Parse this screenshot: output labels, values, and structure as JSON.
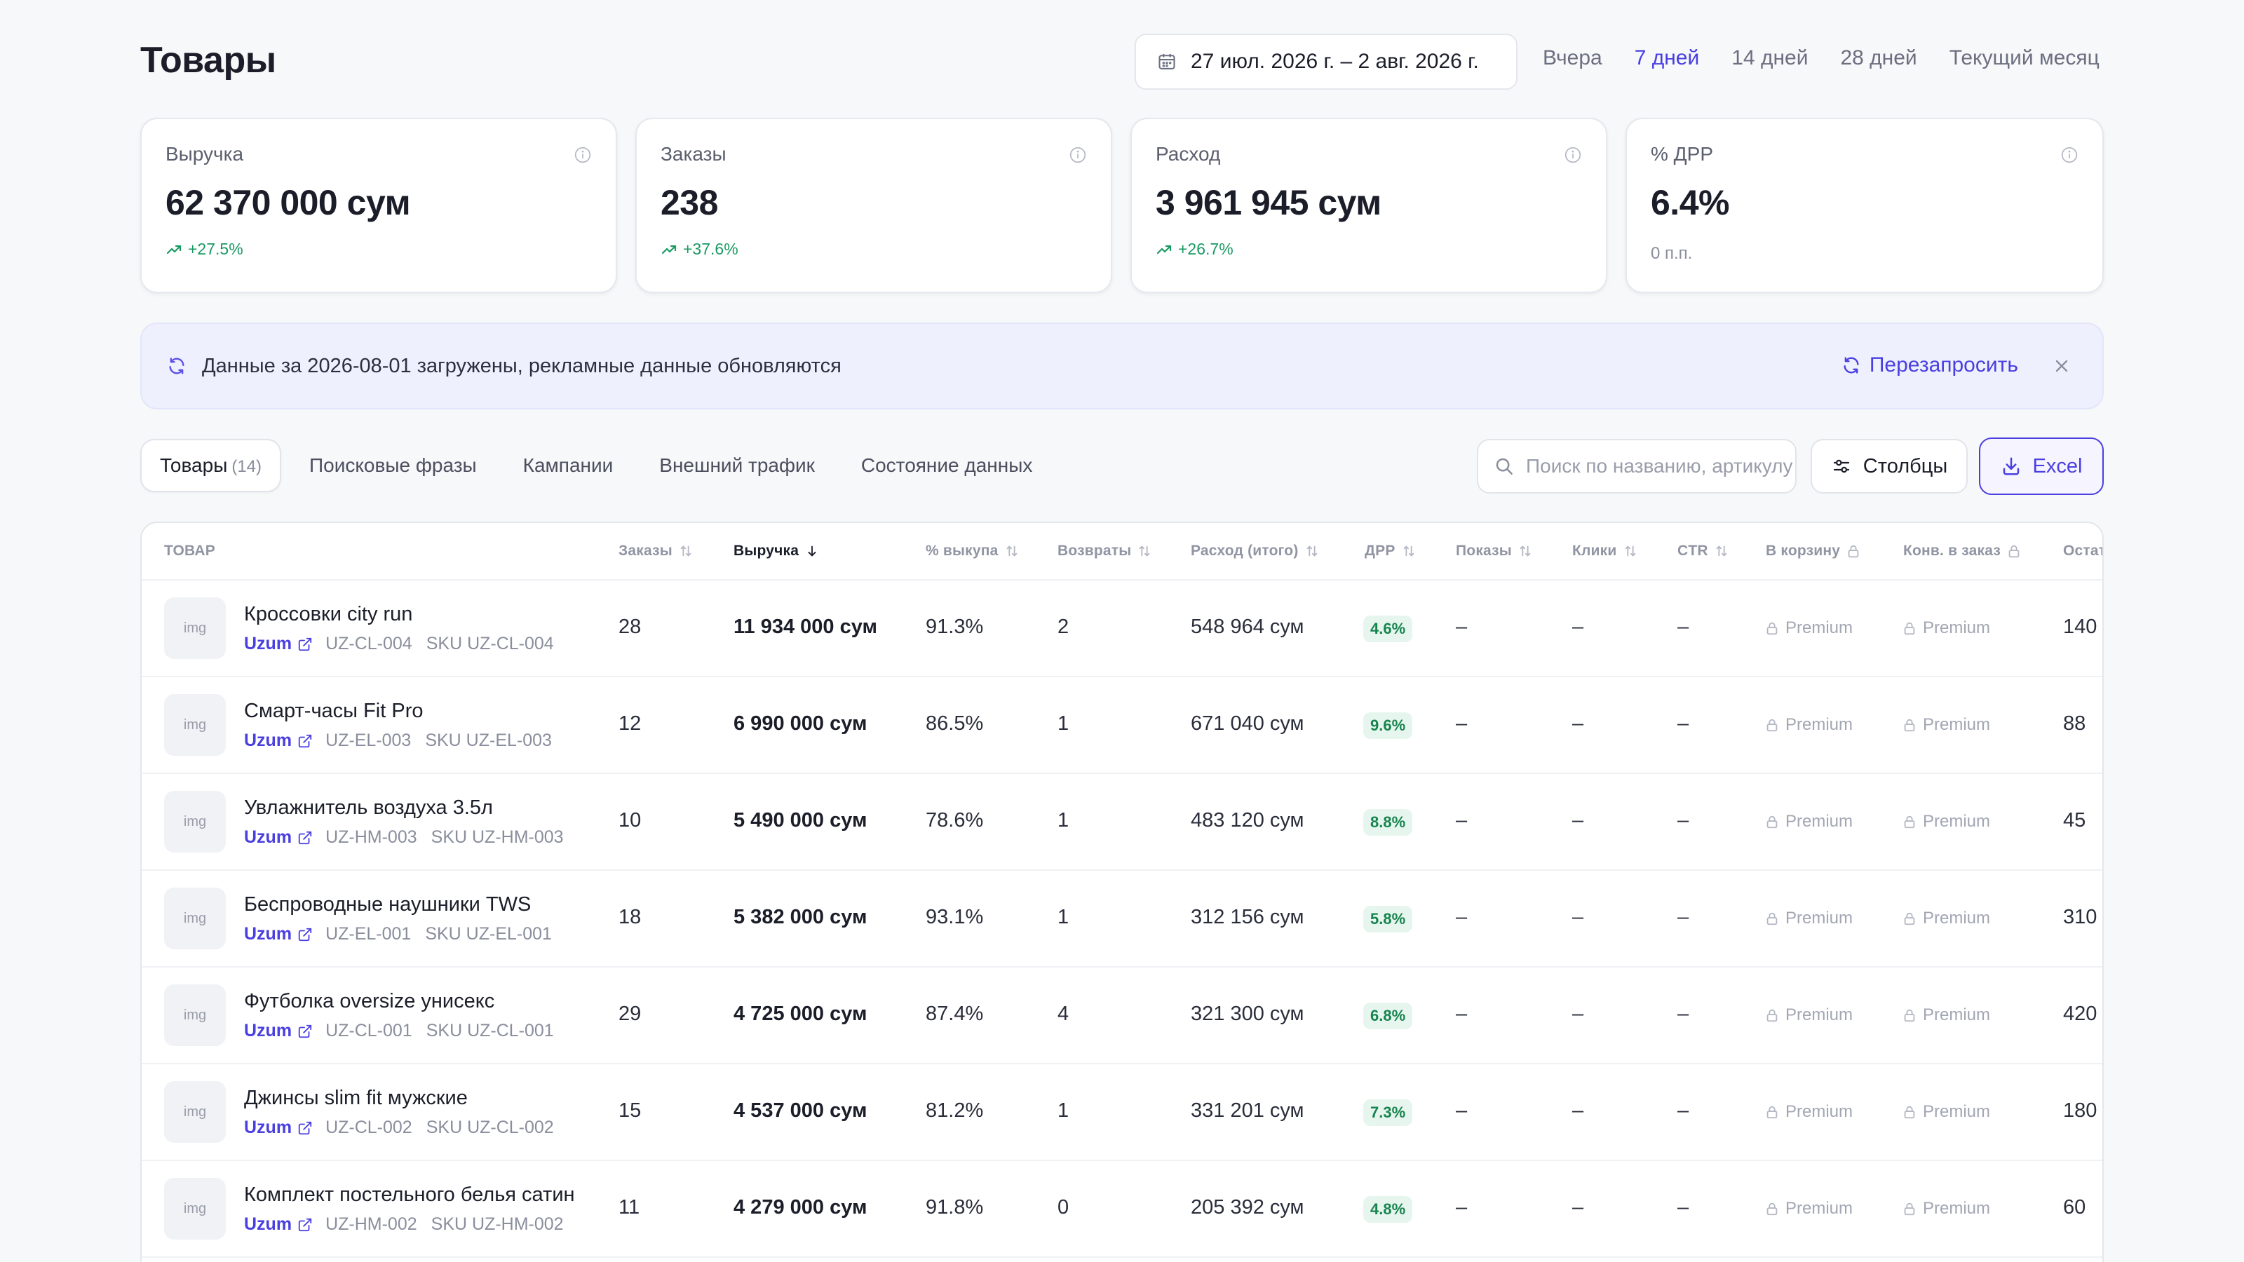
{
  "header": {
    "title": "Товары",
    "date_range": "27 июл. 2026 г. – 2 авг. 2026 г.",
    "periods": [
      {
        "label": "Вчера",
        "active": false
      },
      {
        "label": "7 дней",
        "active": true
      },
      {
        "label": "14 дней",
        "active": false
      },
      {
        "label": "28 дней",
        "active": false
      },
      {
        "label": "Текущий месяц",
        "active": false
      }
    ]
  },
  "kpis": [
    {
      "label": "Выручка",
      "value": "62 370 000 сум",
      "delta": "+27.5%"
    },
    {
      "label": "Заказы",
      "value": "238",
      "delta": "+37.6%"
    },
    {
      "label": "Расход",
      "value": "3 961 945 сум",
      "delta": "+26.7%"
    },
    {
      "label": "% ДРР",
      "value": "6.4%",
      "sub": "0 п.п."
    }
  ],
  "banner": {
    "text": "Данные за 2026-08-01 загружены, рекламные данные обновляются",
    "action": "Перезапросить"
  },
  "tabs": [
    {
      "label": "Товары",
      "count": "(14)",
      "active": true
    },
    {
      "label": "Поисковые фразы"
    },
    {
      "label": "Кампании"
    },
    {
      "label": "Внешний трафик"
    },
    {
      "label": "Состояние данных"
    }
  ],
  "toolbar": {
    "search_placeholder": "Поиск по названию, артикулу",
    "columns_label": "Столбцы",
    "excel_label": "Excel"
  },
  "table": {
    "headers": {
      "product": "ТОВАР",
      "orders": "Заказы",
      "revenue": "Выручка",
      "buyout": "% выкупа",
      "returns": "Возвраты",
      "spend": "Расход (итого)",
      "drr": "ДРР",
      "impressions": "Показы",
      "clicks": "Клики",
      "ctr": "CTR",
      "to_cart": "В корзину",
      "conv": "Конв. в заказ",
      "stock": "Остатки"
    },
    "premium_label": "Premium",
    "thumb_label": "img",
    "dash": "–",
    "rows": [
      {
        "name": "Кроссовки city run",
        "marketplace": "Uzum",
        "article": "UZ-CL-004",
        "sku": "SKU UZ-CL-004",
        "orders": "28",
        "revenue": "11 934 000 сум",
        "buyout": "91.3%",
        "returns": "2",
        "spend": "548 964 сум",
        "drr": "4.6%",
        "stock": "140"
      },
      {
        "name": "Смарт-часы Fit Pro",
        "marketplace": "Uzum",
        "article": "UZ-EL-003",
        "sku": "SKU UZ-EL-003",
        "orders": "12",
        "revenue": "6 990 000 сум",
        "buyout": "86.5%",
        "returns": "1",
        "spend": "671 040 сум",
        "drr": "9.6%",
        "stock": "88"
      },
      {
        "name": "Увлажнитель воздуха 3.5л",
        "marketplace": "Uzum",
        "article": "UZ-HM-003",
        "sku": "SKU UZ-HM-003",
        "orders": "10",
        "revenue": "5 490 000 сум",
        "buyout": "78.6%",
        "returns": "1",
        "spend": "483 120 сум",
        "drr": "8.8%",
        "stock": "45"
      },
      {
        "name": "Беспроводные наушники TWS",
        "marketplace": "Uzum",
        "article": "UZ-EL-001",
        "sku": "SKU UZ-EL-001",
        "orders": "18",
        "revenue": "5 382 000 сум",
        "buyout": "93.1%",
        "returns": "1",
        "spend": "312 156 сум",
        "drr": "5.8%",
        "stock": "310"
      },
      {
        "name": "Футболка oversize унисекс",
        "marketplace": "Uzum",
        "article": "UZ-CL-001",
        "sku": "SKU UZ-CL-001",
        "orders": "29",
        "revenue": "4 725 000 сум",
        "buyout": "87.4%",
        "returns": "4",
        "spend": "321 300 сум",
        "drr": "6.8%",
        "stock": "420"
      },
      {
        "name": "Джинсы slim fit мужские",
        "marketplace": "Uzum",
        "article": "UZ-CL-002",
        "sku": "SKU UZ-CL-002",
        "orders": "15",
        "revenue": "4 537 000 сум",
        "buyout": "81.2%",
        "returns": "1",
        "spend": "331 201 сум",
        "drr": "7.3%",
        "stock": "180"
      },
      {
        "name": "Комплект постельного белья сатин",
        "marketplace": "Uzum",
        "article": "UZ-HM-002",
        "sku": "SKU UZ-HM-002",
        "orders": "11",
        "revenue": "4 279 000 сум",
        "buyout": "91.8%",
        "returns": "0",
        "spend": "205 392 сум",
        "drr": "4.8%",
        "stock": "60"
      }
    ]
  }
}
